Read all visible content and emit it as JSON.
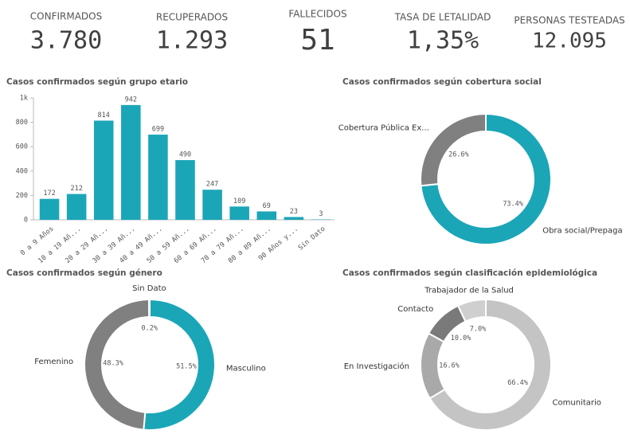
{
  "kpis": [
    {
      "label": "CONFIRMADOS",
      "value": "3.780",
      "color": "#1ba6b8"
    },
    {
      "label": "RECUPERADOS",
      "value": "1.293",
      "color": "#1ba6b8"
    },
    {
      "label": "FALLECIDOS",
      "value": "51",
      "color": "#6e6e6e"
    },
    {
      "label": "TASA DE LETALIDAD",
      "value": "1,35%",
      "color": "#6e6e6e"
    },
    {
      "label": "PERSONAS TESTEADAS",
      "value": "12.095",
      "color": "#1ba6b8"
    }
  ],
  "chart_data": [
    {
      "type": "bar",
      "title": "Casos confirmados según grupo etario",
      "categories": [
        "0 a 9 Años",
        "10 a 19 Añ...",
        "20 a 29 Añ...",
        "30 a 39 Añ...",
        "40 a 49 Añ...",
        "50 a 59 Añ...",
        "60 a 69 Añ...",
        "70 a 79 Añ...",
        "80 a 89 Añ...",
        "90 Años y...",
        "Sin Dato"
      ],
      "values": [
        172,
        212,
        814,
        942,
        699,
        490,
        247,
        109,
        69,
        23,
        3
      ],
      "color": "#1ba6b8",
      "ylim": [
        0,
        1000
      ],
      "yticks": [
        0,
        200,
        400,
        600,
        800,
        {
          "value": 1000,
          "label": "1k"
        }
      ]
    },
    {
      "type": "donut",
      "title": "Casos confirmados según cobertura social",
      "categories": [
        "Obra social/Prepaga",
        "Cobertura Pública Ex..."
      ],
      "values": [
        73.4,
        26.6
      ],
      "value_labels": [
        "73.4%",
        "26.6%"
      ],
      "colors": [
        "#1ba6b8",
        "#808080"
      ]
    },
    {
      "type": "donut",
      "title": "Casos confirmados según género",
      "categories": [
        "Masculino",
        "Femenino",
        "Sin Dato"
      ],
      "values": [
        51.5,
        48.3,
        0.2
      ],
      "value_labels": [
        "51.5%",
        "48.3%",
        "0.2%"
      ],
      "colors": [
        "#1ba6b8",
        "#808080",
        "#c4c4c4"
      ]
    },
    {
      "type": "donut",
      "title": "Casos confirmados según clasificación epidemiológica",
      "categories": [
        "Comunitario",
        "En Investigación",
        "Contacto",
        "Trabajador de la Salud"
      ],
      "values": [
        66.4,
        16.6,
        10.0,
        7.0
      ],
      "value_labels": [
        "66.4%",
        "16.6%",
        "10.0%",
        "7.0%"
      ],
      "colors": [
        "#c4c4c4",
        "#a9a9a9",
        "#7a7a7a",
        "#cfcfcf"
      ]
    }
  ]
}
